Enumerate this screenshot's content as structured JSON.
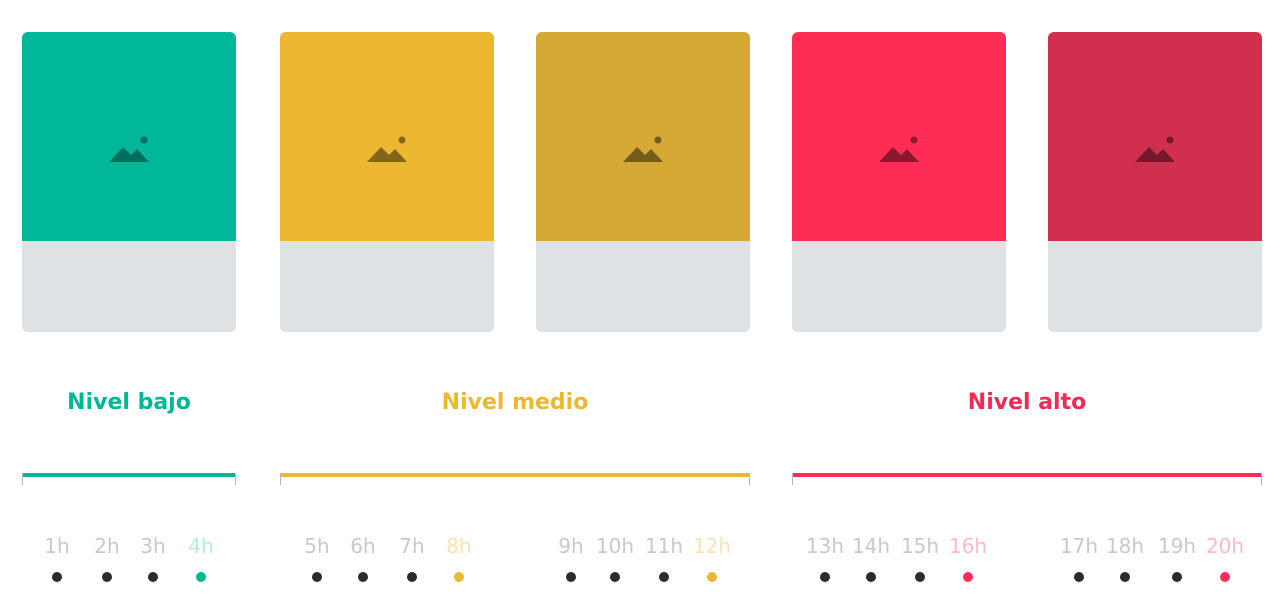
{
  "colors": {
    "green": "#00b799",
    "yellow": "#eeb732",
    "mustard": "#d4a934",
    "pink": "#ff2d55",
    "crimson": "#d0304d",
    "card_bottom": "#dfe2e5",
    "hour_text": "#c9c9c9",
    "dot_default": "#2b2b2b"
  },
  "cards": [
    {
      "color": "#00b799",
      "icon": "image-placeholder-icon"
    },
    {
      "color": "#eeb732",
      "icon": "image-placeholder-icon"
    },
    {
      "color": "#d4a934",
      "icon": "image-placeholder-icon"
    },
    {
      "color": "#ff2d55",
      "icon": "image-placeholder-icon"
    },
    {
      "color": "#d0304d",
      "icon": "image-placeholder-icon"
    }
  ],
  "levels": [
    {
      "label": "Nivel bajo",
      "color": "#00b799"
    },
    {
      "label": "Nivel medio",
      "color": "#eeb732"
    },
    {
      "label": "Nivel alto",
      "color": "#ee2c56"
    }
  ],
  "hours": [
    {
      "label": "1h"
    },
    {
      "label": "2h"
    },
    {
      "label": "3h"
    },
    {
      "label": "4h",
      "highlight": "#b4ebe3",
      "dot": "#00b799"
    },
    {
      "label": "5h"
    },
    {
      "label": "6h"
    },
    {
      "label": "7h"
    },
    {
      "label": "8h",
      "highlight": "#f9e3b1",
      "dot": "#eeb732"
    },
    {
      "label": "9h"
    },
    {
      "label": "10h"
    },
    {
      "label": "11h"
    },
    {
      "label": "12h",
      "highlight": "#f9e3b1",
      "dot": "#eeb732"
    },
    {
      "label": "13h"
    },
    {
      "label": "14h"
    },
    {
      "label": "15h"
    },
    {
      "label": "16h",
      "highlight": "#ffb8c6",
      "dot": "#ff2d55"
    },
    {
      "label": "17h"
    },
    {
      "label": "18h"
    },
    {
      "label": "19h"
    },
    {
      "label": "20h",
      "highlight": "#ffb8c6",
      "dot": "#ff2d55"
    }
  ]
}
